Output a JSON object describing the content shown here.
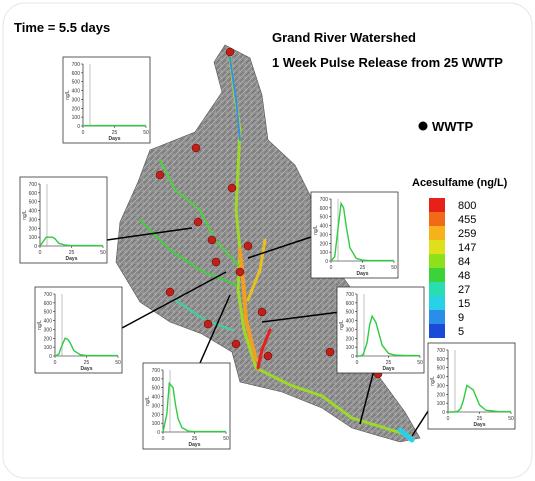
{
  "time_label": "Time = 5.5 days",
  "title": "Grand River Watershed",
  "subtitle": "1 Week Pulse Release from 25 WWTP",
  "wwtp_legend": "WWTP",
  "colorbar": {
    "title": "Acesulfame (ng/L)",
    "labels": [
      800,
      455,
      259,
      147,
      84,
      48,
      27,
      15,
      9,
      5
    ],
    "colors": [
      "#e8201a",
      "#f06a18",
      "#f5b21a",
      "#e0e01a",
      "#8ee01a",
      "#3cd23a",
      "#2adcb0",
      "#28d0e8",
      "#2a8ee8",
      "#1a4ad8"
    ]
  },
  "chart_data": [
    {
      "type": "line",
      "xlabel": "Days",
      "ylabel": "ng/L",
      "color": "#2ecc40",
      "xlim": [
        0,
        50
      ],
      "ylim": [
        0,
        700
      ],
      "xticks": [
        0,
        25,
        50
      ],
      "yticks": [
        0,
        100,
        200,
        300,
        400,
        500,
        600,
        700
      ],
      "x": [
        0,
        3,
        5,
        8,
        10,
        12,
        15,
        20,
        25,
        30,
        40,
        50
      ],
      "values": [
        5,
        5,
        5,
        5,
        5,
        5,
        5,
        5,
        5,
        5,
        5,
        5
      ]
    },
    {
      "type": "line",
      "xlabel": "Days",
      "ylabel": "ng/L",
      "color": "#2ecc40",
      "xlim": [
        0,
        50
      ],
      "ylim": [
        0,
        700
      ],
      "xticks": [
        0,
        25,
        50
      ],
      "yticks": [
        0,
        100,
        200,
        300,
        400,
        500,
        600,
        700
      ],
      "x": [
        0,
        3,
        5,
        8,
        10,
        12,
        15,
        20,
        25,
        30,
        40,
        50
      ],
      "values": [
        0,
        60,
        100,
        100,
        100,
        80,
        30,
        10,
        5,
        5,
        5,
        5
      ]
    },
    {
      "type": "line",
      "xlabel": "Days",
      "ylabel": "ng/L",
      "color": "#2ecc40",
      "xlim": [
        0,
        50
      ],
      "ylim": [
        0,
        700
      ],
      "xticks": [
        0,
        25,
        50
      ],
      "yticks": [
        0,
        100,
        200,
        300,
        400,
        500,
        600,
        700
      ],
      "x": [
        0,
        3,
        5,
        8,
        10,
        12,
        15,
        20,
        25,
        30,
        40,
        50
      ],
      "values": [
        0,
        50,
        300,
        650,
        600,
        400,
        150,
        30,
        10,
        5,
        5,
        5
      ]
    },
    {
      "type": "line",
      "xlabel": "Days",
      "ylabel": "ng/L",
      "color": "#2ecc40",
      "xlim": [
        0,
        50
      ],
      "ylim": [
        0,
        700
      ],
      "xticks": [
        0,
        25,
        50
      ],
      "yticks": [
        0,
        100,
        200,
        300,
        400,
        500,
        600,
        700
      ],
      "x": [
        0,
        3,
        5,
        8,
        10,
        12,
        15,
        20,
        25,
        30,
        40,
        50
      ],
      "values": [
        0,
        20,
        100,
        200,
        190,
        150,
        60,
        15,
        5,
        5,
        5,
        5
      ]
    },
    {
      "type": "line",
      "xlabel": "Days",
      "ylabel": "ng/L",
      "color": "#2ecc40",
      "xlim": [
        0,
        50
      ],
      "ylim": [
        0,
        700
      ],
      "xticks": [
        0,
        25,
        50
      ],
      "yticks": [
        0,
        100,
        200,
        300,
        400,
        500,
        600,
        700
      ],
      "x": [
        0,
        3,
        5,
        8,
        10,
        12,
        15,
        20,
        25,
        30,
        40,
        50
      ],
      "values": [
        0,
        0,
        20,
        150,
        350,
        450,
        380,
        120,
        30,
        10,
        5,
        5
      ]
    },
    {
      "type": "line",
      "xlabel": "Days",
      "ylabel": "ng/L",
      "color": "#2ecc40",
      "xlim": [
        0,
        50
      ],
      "ylim": [
        0,
        700
      ],
      "xticks": [
        0,
        25,
        50
      ],
      "yticks": [
        0,
        100,
        200,
        300,
        400,
        500,
        600,
        700
      ],
      "x": [
        0,
        3,
        5,
        8,
        10,
        12,
        15,
        20,
        25,
        30,
        40,
        50
      ],
      "values": [
        0,
        200,
        550,
        500,
        300,
        150,
        50,
        10,
        5,
        5,
        5,
        5
      ]
    },
    {
      "type": "line",
      "xlabel": "Days",
      "ylabel": "ng/L",
      "color": "#2ecc40",
      "xlim": [
        0,
        50
      ],
      "ylim": [
        0,
        700
      ],
      "xticks": [
        0,
        25,
        50
      ],
      "yticks": [
        0,
        100,
        200,
        300,
        400,
        500,
        600,
        700
      ],
      "x": [
        0,
        3,
        5,
        8,
        10,
        12,
        15,
        20,
        25,
        30,
        40,
        50
      ],
      "values": [
        0,
        0,
        0,
        10,
        40,
        120,
        300,
        250,
        80,
        20,
        5,
        5
      ]
    }
  ]
}
